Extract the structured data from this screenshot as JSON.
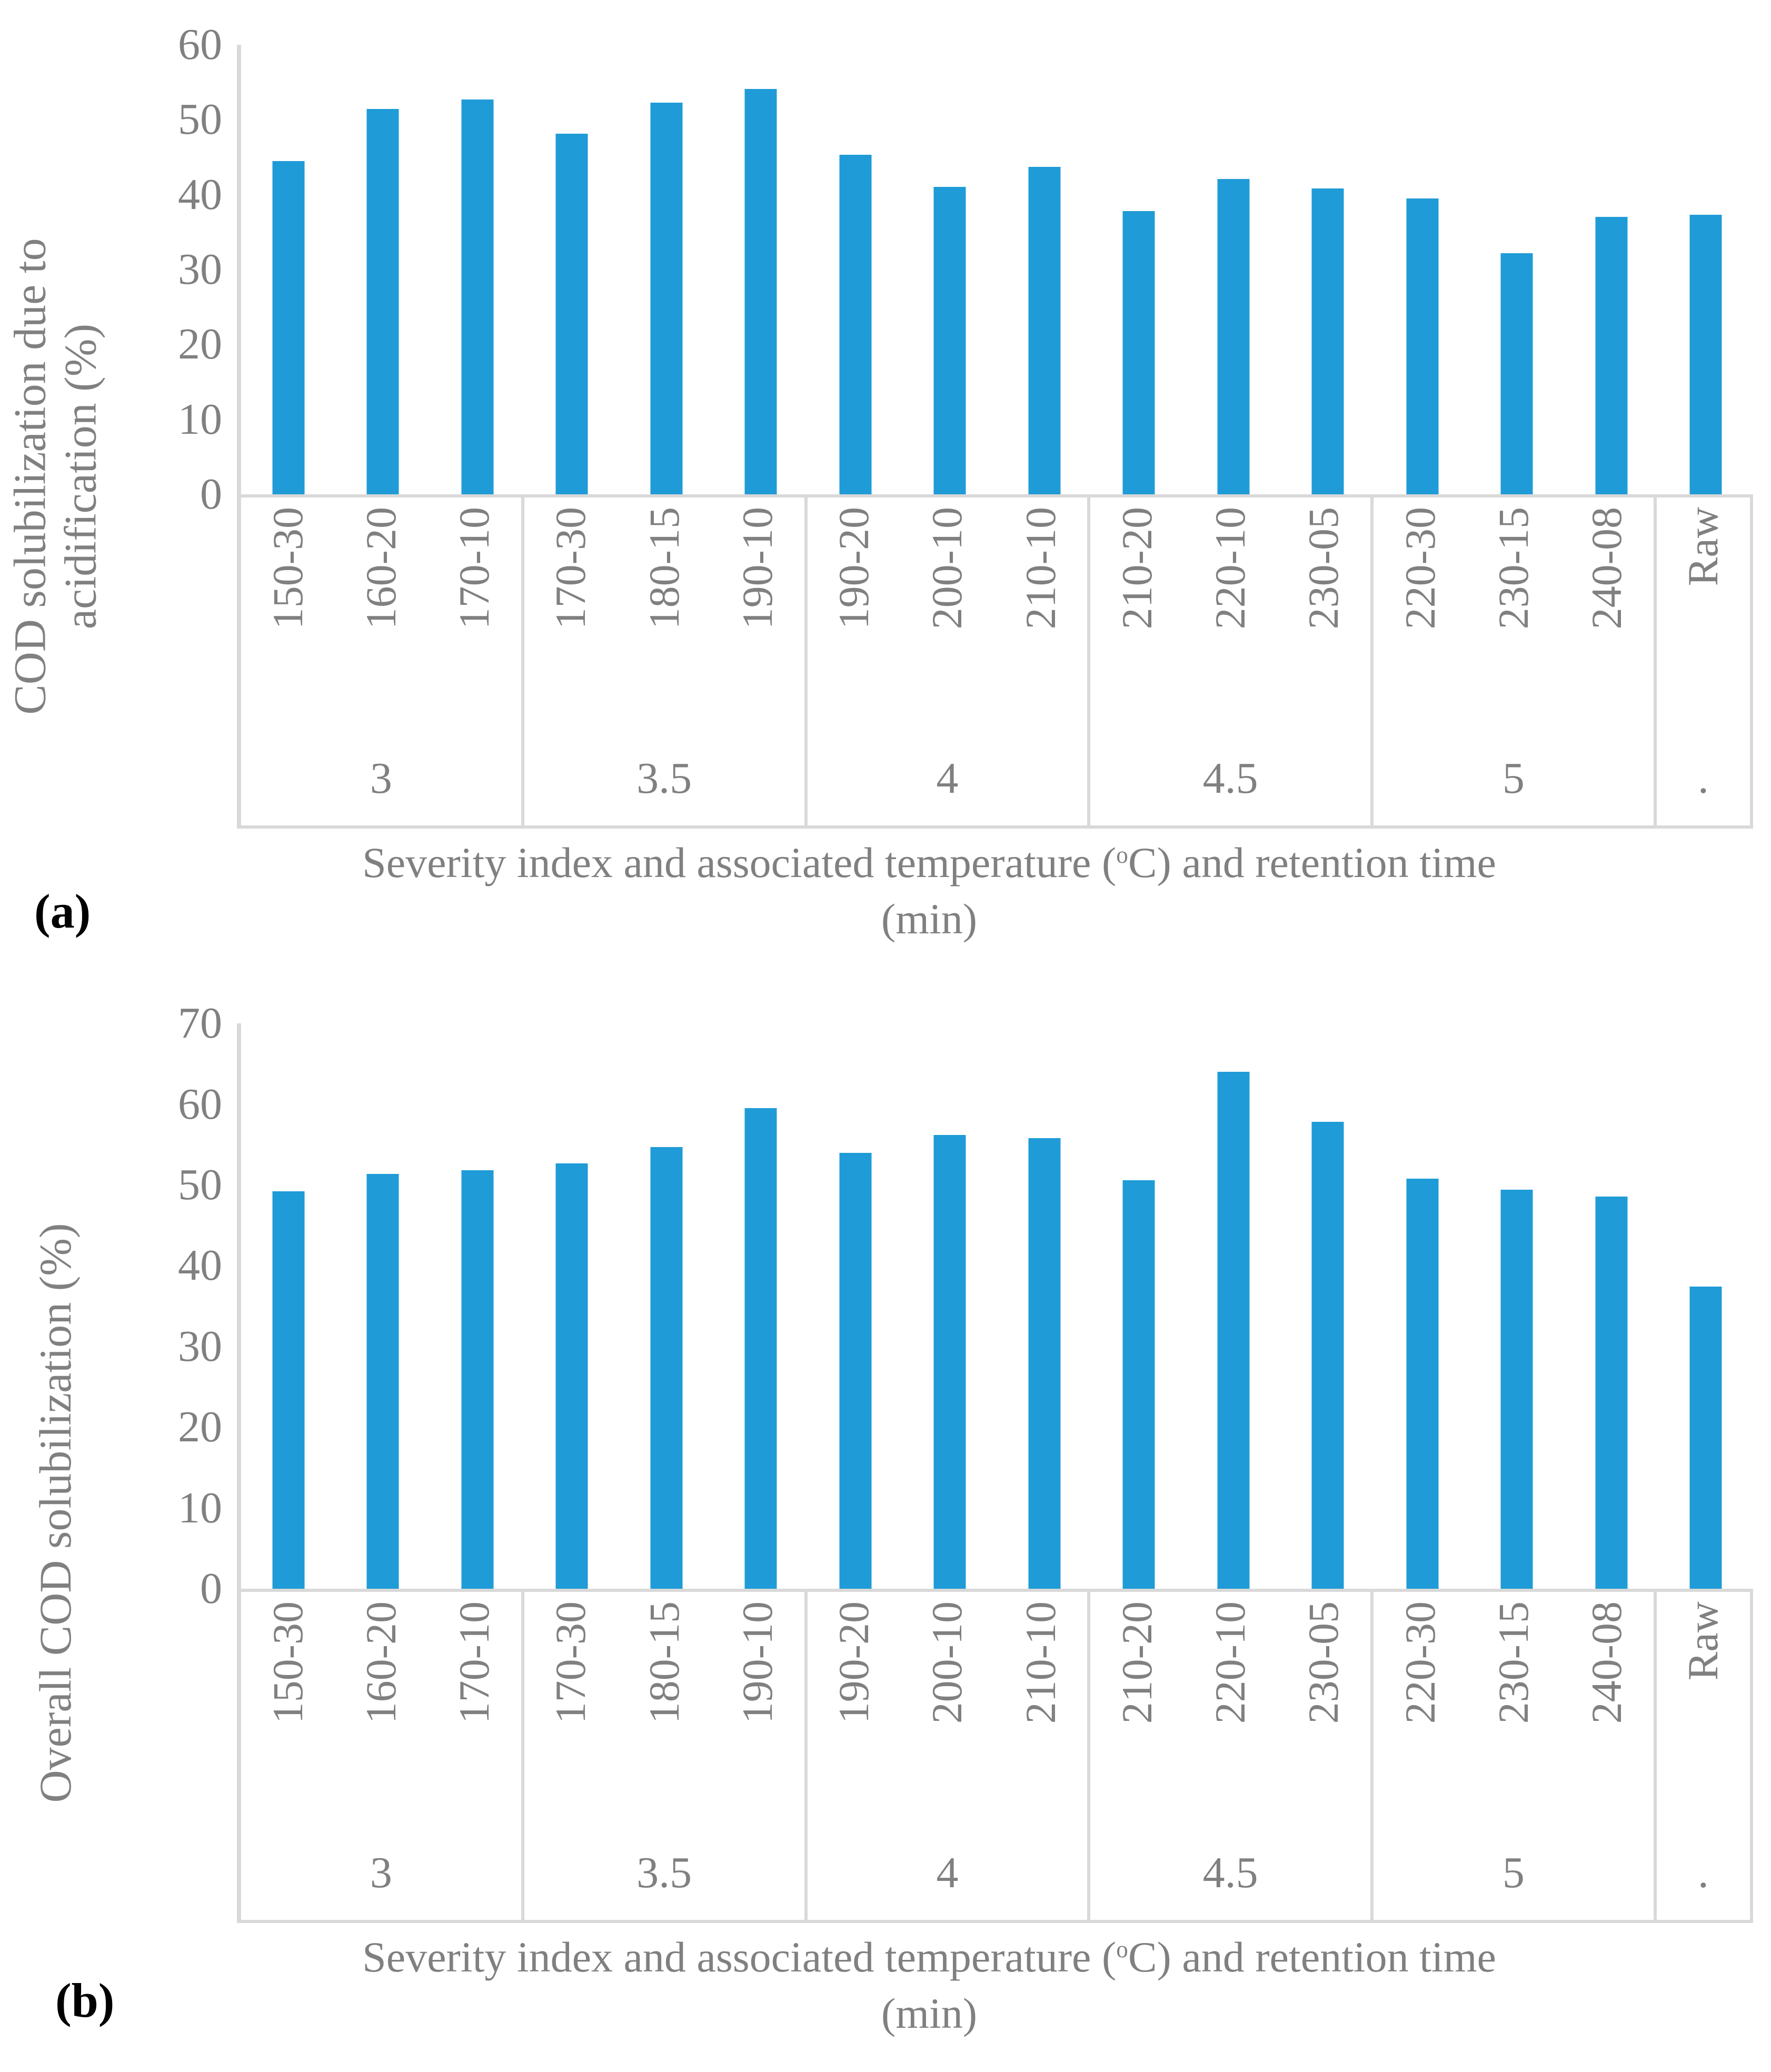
{
  "colors": {
    "bar": "#1F9BD7",
    "axis_line": "#D9D9D9",
    "label_text": "#808080",
    "panel_letter": "#000000"
  },
  "chart_data": [
    {
      "type": "bar",
      "panel_label": "(a)",
      "ylabel": "COD solubilization due to acidification (%)",
      "ylabel_lines": [
        "COD solubilization due to",
        "acidification (%)"
      ],
      "xlabel_parts": [
        "Severity index and associated temperature (",
        "o",
        "C) and retention time"
      ],
      "xlabel_line2": "(min)",
      "ylim": [
        0,
        60
      ],
      "yticks": [
        0,
        10,
        20,
        30,
        40,
        50,
        60
      ],
      "grid": false,
      "categories": [
        "150-30",
        "160-20",
        "170-10",
        "170-30",
        "180-15",
        "190-10",
        "190-20",
        "200-10",
        "210-10",
        "210-20",
        "220-10",
        "230-05",
        "220-30",
        "230-15",
        "240-08",
        "Raw"
      ],
      "groups": [
        {
          "label": "3",
          "span": 3
        },
        {
          "label": "3.5",
          "span": 3
        },
        {
          "label": "4",
          "span": 3
        },
        {
          "label": "4.5",
          "span": 3
        },
        {
          "label": "5",
          "span": 3
        },
        {
          "label": ".",
          "span": 1
        }
      ],
      "values": [
        44.5,
        51.4,
        52.7,
        48.1,
        52.3,
        54.1,
        45.3,
        41.0,
        43.7,
        37.8,
        42.1,
        40.8,
        39.5,
        32.2,
        37.0,
        37.3
      ]
    },
    {
      "type": "bar",
      "panel_label": "(b)",
      "ylabel": "Overall COD solubilization (%)",
      "ylabel_lines": [
        "Overall COD solubilization (%)"
      ],
      "xlabel_parts": [
        "Severity index and associated temperature (",
        "o",
        "C) and retention time"
      ],
      "xlabel_line2": "(min)",
      "ylim": [
        0,
        70
      ],
      "yticks": [
        0,
        10,
        20,
        30,
        40,
        50,
        60,
        70
      ],
      "grid": false,
      "categories": [
        "150-30",
        "160-20",
        "170-10",
        "170-30",
        "180-15",
        "190-10",
        "190-20",
        "200-10",
        "210-10",
        "210-20",
        "220-10",
        "230-05",
        "220-30",
        "230-15",
        "240-08",
        "Raw"
      ],
      "groups": [
        {
          "label": "3",
          "span": 3
        },
        {
          "label": "3.5",
          "span": 3
        },
        {
          "label": "4",
          "span": 3
        },
        {
          "label": "4.5",
          "span": 3
        },
        {
          "label": "5",
          "span": 3
        },
        {
          "label": ".",
          "span": 1
        }
      ],
      "values": [
        49.2,
        51.4,
        51.8,
        52.7,
        54.7,
        59.5,
        54.0,
        56.2,
        55.8,
        50.6,
        64.0,
        57.8,
        50.8,
        49.4,
        48.6,
        37.4
      ]
    }
  ]
}
